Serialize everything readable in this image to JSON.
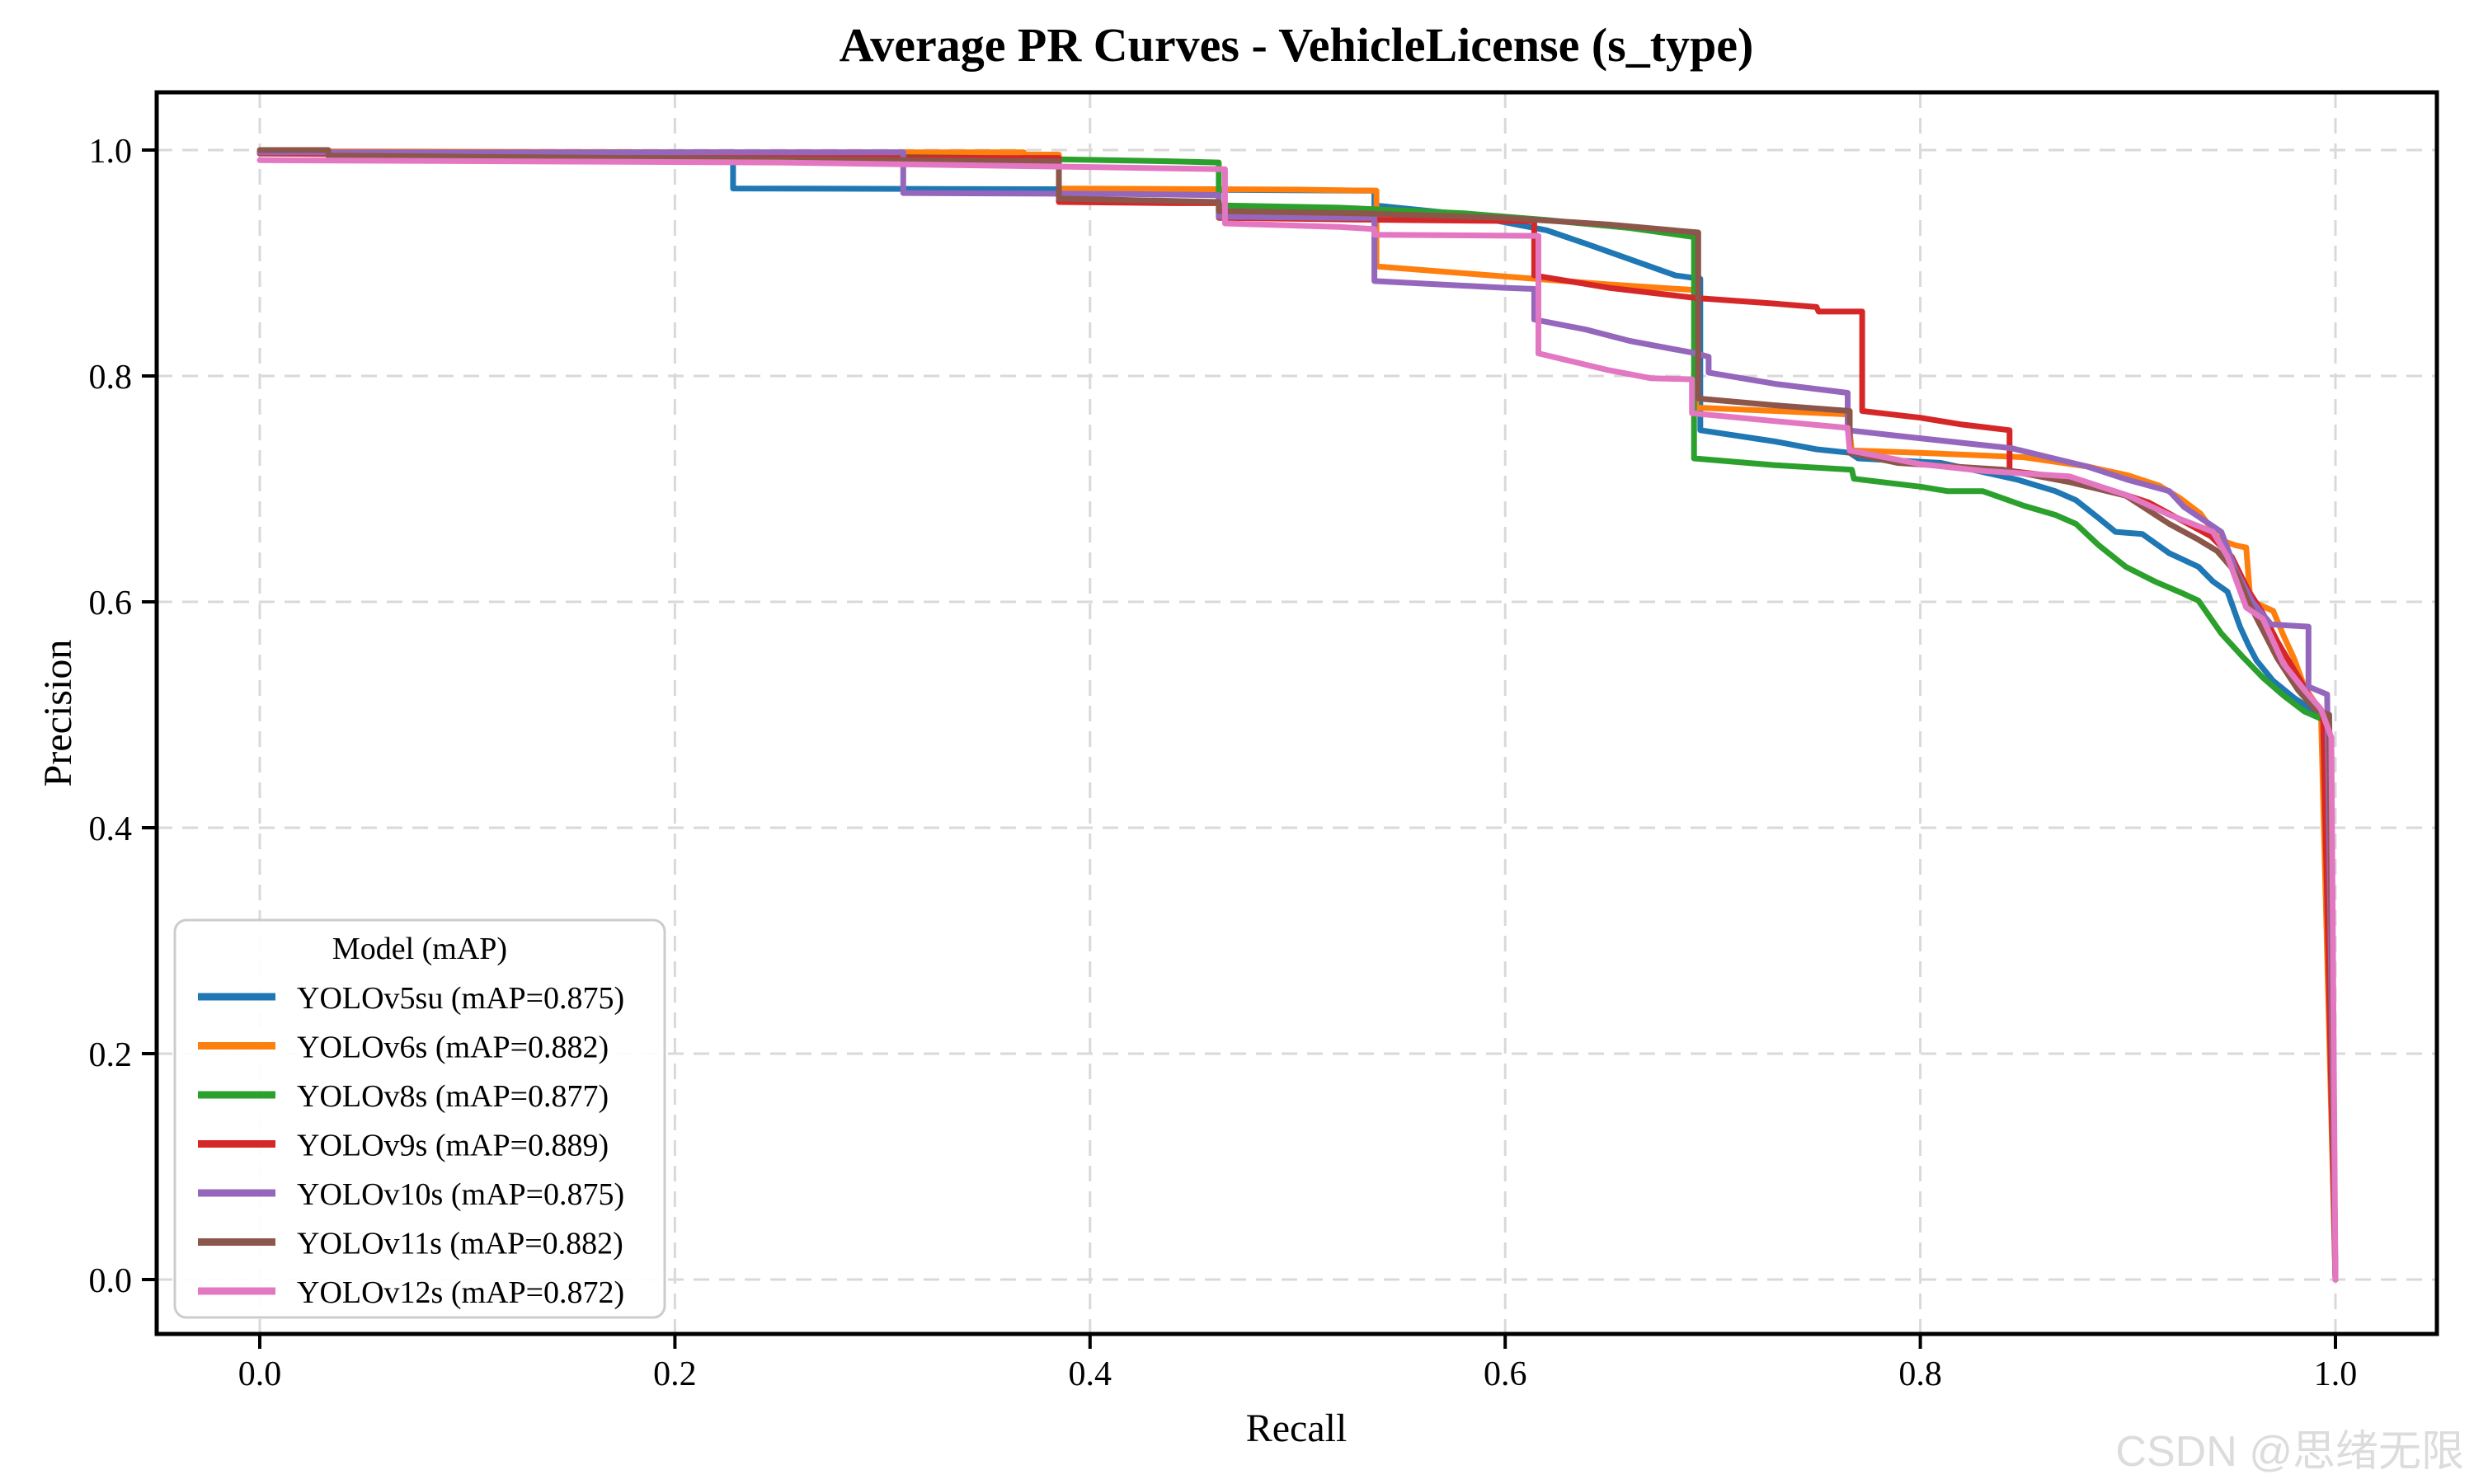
{
  "page": {
    "title": "Average PR Curves - VehicleLicense (s_type)",
    "watermark": "CSDN @思绪无限"
  },
  "chart_data": {
    "type": "line",
    "title": "Average PR Curves - VehicleLicense (s_type)",
    "xlabel": "Recall",
    "ylabel": "Precision",
    "xlim": [
      -0.05,
      1.05
    ],
    "ylim": [
      -0.05,
      1.05
    ],
    "x_ticks": [
      0.0,
      0.2,
      0.4,
      0.6,
      0.8,
      1.0
    ],
    "y_ticks": [
      0.0,
      0.2,
      0.4,
      0.6,
      0.8,
      1.0
    ],
    "grid": true,
    "grid_style": "dashed",
    "legend": {
      "title": "Model (mAP)",
      "position": "lower-left"
    },
    "series": [
      {
        "name": "YOLOv5su",
        "mAP": 0.875,
        "label": "YOLOv5su (mAP=0.875)",
        "color": "#1f77b4",
        "points": [
          [
            0,
            0.998
          ],
          [
            0.228,
            0.998
          ],
          [
            0.228,
            0.966
          ],
          [
            0.45,
            0.965
          ],
          [
            0.537,
            0.964
          ],
          [
            0.537,
            0.951
          ],
          [
            0.58,
            0.943
          ],
          [
            0.62,
            0.929
          ],
          [
            0.639,
            0.917
          ],
          [
            0.682,
            0.889
          ],
          [
            0.694,
            0.886
          ],
          [
            0.694,
            0.752
          ],
          [
            0.73,
            0.742
          ],
          [
            0.75,
            0.735
          ],
          [
            0.766,
            0.732
          ],
          [
            0.77,
            0.727
          ],
          [
            0.81,
            0.723
          ],
          [
            0.83,
            0.715
          ],
          [
            0.847,
            0.708
          ],
          [
            0.865,
            0.698
          ],
          [
            0.875,
            0.69
          ],
          [
            0.886,
            0.674
          ],
          [
            0.894,
            0.662
          ],
          [
            0.907,
            0.66
          ],
          [
            0.92,
            0.643
          ],
          [
            0.934,
            0.631
          ],
          [
            0.941,
            0.618
          ],
          [
            0.948,
            0.609
          ],
          [
            0.954,
            0.578
          ],
          [
            0.958,
            0.562
          ],
          [
            0.962,
            0.548
          ],
          [
            0.97,
            0.53
          ],
          [
            0.98,
            0.515
          ],
          [
            0.99,
            0.503
          ],
          [
            0.996,
            0.497
          ],
          [
            1,
            0
          ]
        ]
      },
      {
        "name": "YOLOv6s",
        "mAP": 0.882,
        "label": "YOLOv6s (mAP=0.882)",
        "color": "#ff7f0e",
        "points": [
          [
            0,
            0.999
          ],
          [
            0.2,
            0.998
          ],
          [
            0.368,
            0.998
          ],
          [
            0.368,
            0.996
          ],
          [
            0.385,
            0.996
          ],
          [
            0.385,
            0.966
          ],
          [
            0.5,
            0.965
          ],
          [
            0.538,
            0.964
          ],
          [
            0.538,
            0.897
          ],
          [
            0.6,
            0.888
          ],
          [
            0.65,
            0.881
          ],
          [
            0.692,
            0.876
          ],
          [
            0.692,
            0.772
          ],
          [
            0.73,
            0.769
          ],
          [
            0.765,
            0.766
          ],
          [
            0.767,
            0.734
          ],
          [
            0.8,
            0.732
          ],
          [
            0.85,
            0.728
          ],
          [
            0.88,
            0.72
          ],
          [
            0.9,
            0.712
          ],
          [
            0.915,
            0.703
          ],
          [
            0.925,
            0.692
          ],
          [
            0.935,
            0.678
          ],
          [
            0.944,
            0.655
          ],
          [
            0.952,
            0.65
          ],
          [
            0.957,
            0.648
          ],
          [
            0.959,
            0.601
          ],
          [
            0.97,
            0.592
          ],
          [
            0.975,
            0.57
          ],
          [
            0.98,
            0.55
          ],
          [
            0.985,
            0.525
          ],
          [
            0.993,
            0.503
          ],
          [
            1,
            0
          ]
        ]
      },
      {
        "name": "YOLOv8s",
        "mAP": 0.877,
        "label": "YOLOv8s (mAP=0.877)",
        "color": "#2ca02c",
        "points": [
          [
            0,
            0.997
          ],
          [
            0.2,
            0.996
          ],
          [
            0.35,
            0.993
          ],
          [
            0.44,
            0.99
          ],
          [
            0.462,
            0.989
          ],
          [
            0.462,
            0.951
          ],
          [
            0.52,
            0.949
          ],
          [
            0.58,
            0.944
          ],
          [
            0.62,
            0.938
          ],
          [
            0.66,
            0.931
          ],
          [
            0.691,
            0.923
          ],
          [
            0.691,
            0.727
          ],
          [
            0.73,
            0.721
          ],
          [
            0.767,
            0.717
          ],
          [
            0.768,
            0.709
          ],
          [
            0.8,
            0.702
          ],
          [
            0.813,
            0.698
          ],
          [
            0.83,
            0.698
          ],
          [
            0.85,
            0.685
          ],
          [
            0.865,
            0.677
          ],
          [
            0.875,
            0.669
          ],
          [
            0.886,
            0.65
          ],
          [
            0.899,
            0.631
          ],
          [
            0.913,
            0.618
          ],
          [
            0.927,
            0.607
          ],
          [
            0.934,
            0.601
          ],
          [
            0.945,
            0.572
          ],
          [
            0.955,
            0.552
          ],
          [
            0.965,
            0.533
          ],
          [
            0.975,
            0.517
          ],
          [
            0.985,
            0.503
          ],
          [
            0.995,
            0.495
          ],
          [
            1,
            0
          ]
        ]
      },
      {
        "name": "YOLOv9s",
        "mAP": 0.889,
        "label": "YOLOv9s (mAP=0.889)",
        "color": "#d62728",
        "points": [
          [
            0,
            0.997
          ],
          [
            0.14,
            0.995
          ],
          [
            0.35,
            0.993
          ],
          [
            0.385,
            0.993
          ],
          [
            0.385,
            0.954
          ],
          [
            0.44,
            0.953
          ],
          [
            0.462,
            0.953
          ],
          [
            0.462,
            0.94
          ],
          [
            0.55,
            0.938
          ],
          [
            0.614,
            0.937
          ],
          [
            0.614,
            0.889
          ],
          [
            0.65,
            0.878
          ],
          [
            0.692,
            0.869
          ],
          [
            0.73,
            0.864
          ],
          [
            0.75,
            0.861
          ],
          [
            0.751,
            0.857
          ],
          [
            0.772,
            0.857
          ],
          [
            0.772,
            0.769
          ],
          [
            0.8,
            0.763
          ],
          [
            0.82,
            0.757
          ],
          [
            0.843,
            0.752
          ],
          [
            0.843,
            0.716
          ],
          [
            0.87,
            0.71
          ],
          [
            0.89,
            0.7
          ],
          [
            0.91,
            0.688
          ],
          [
            0.925,
            0.673
          ],
          [
            0.94,
            0.658
          ],
          [
            0.95,
            0.64
          ],
          [
            0.958,
            0.61
          ],
          [
            0.965,
            0.59
          ],
          [
            0.972,
            0.565
          ],
          [
            0.98,
            0.54
          ],
          [
            0.988,
            0.515
          ],
          [
            0.994,
            0.5
          ],
          [
            1,
            0
          ]
        ]
      },
      {
        "name": "YOLOv10s",
        "mAP": 0.875,
        "label": "YOLOv10s (mAP=0.875)",
        "color": "#9467bd",
        "points": [
          [
            0,
            0.998
          ],
          [
            0.31,
            0.998
          ],
          [
            0.31,
            0.962
          ],
          [
            0.42,
            0.961
          ],
          [
            0.462,
            0.96
          ],
          [
            0.462,
            0.941
          ],
          [
            0.52,
            0.94
          ],
          [
            0.537,
            0.94
          ],
          [
            0.537,
            0.884
          ],
          [
            0.6,
            0.878
          ],
          [
            0.614,
            0.877
          ],
          [
            0.614,
            0.85
          ],
          [
            0.639,
            0.841
          ],
          [
            0.66,
            0.831
          ],
          [
            0.692,
            0.82
          ],
          [
            0.698,
            0.817
          ],
          [
            0.698,
            0.803
          ],
          [
            0.73,
            0.793
          ],
          [
            0.765,
            0.785
          ],
          [
            0.765,
            0.752
          ],
          [
            0.789,
            0.747
          ],
          [
            0.844,
            0.736
          ],
          [
            0.88,
            0.72
          ],
          [
            0.9,
            0.708
          ],
          [
            0.92,
            0.698
          ],
          [
            0.927,
            0.684
          ],
          [
            0.945,
            0.662
          ],
          [
            0.952,
            0.628
          ],
          [
            0.96,
            0.6
          ],
          [
            0.969,
            0.58
          ],
          [
            0.987,
            0.578
          ],
          [
            0.987,
            0.525
          ],
          [
            0.996,
            0.518
          ],
          [
            1,
            0
          ]
        ]
      },
      {
        "name": "YOLOv11s",
        "mAP": 0.882,
        "label": "YOLOv11s (mAP=0.882)",
        "color": "#8c564b",
        "points": [
          [
            0,
            1.0
          ],
          [
            0.033,
            1.0
          ],
          [
            0.033,
            0.995
          ],
          [
            0.25,
            0.992
          ],
          [
            0.385,
            0.99
          ],
          [
            0.385,
            0.957
          ],
          [
            0.44,
            0.955
          ],
          [
            0.462,
            0.954
          ],
          [
            0.462,
            0.946
          ],
          [
            0.53,
            0.944
          ],
          [
            0.6,
            0.94
          ],
          [
            0.65,
            0.934
          ],
          [
            0.693,
            0.927
          ],
          [
            0.693,
            0.78
          ],
          [
            0.73,
            0.774
          ],
          [
            0.766,
            0.769
          ],
          [
            0.766,
            0.732
          ],
          [
            0.789,
            0.723
          ],
          [
            0.84,
            0.717
          ],
          [
            0.872,
            0.706
          ],
          [
            0.899,
            0.694
          ],
          [
            0.92,
            0.669
          ],
          [
            0.934,
            0.655
          ],
          [
            0.943,
            0.645
          ],
          [
            0.952,
            0.626
          ],
          [
            0.958,
            0.6
          ],
          [
            0.965,
            0.575
          ],
          [
            0.972,
            0.55
          ],
          [
            0.982,
            0.522
          ],
          [
            0.99,
            0.505
          ],
          [
            0.997,
            0.5
          ],
          [
            1,
            0
          ]
        ]
      },
      {
        "name": "YOLOv12s",
        "mAP": 0.872,
        "label": "YOLOv12s (mAP=0.872)",
        "color": "#e377c2",
        "points": [
          [
            0,
            0.991
          ],
          [
            0.25,
            0.989
          ],
          [
            0.4,
            0.985
          ],
          [
            0.465,
            0.983
          ],
          [
            0.465,
            0.935
          ],
          [
            0.52,
            0.932
          ],
          [
            0.537,
            0.93
          ],
          [
            0.537,
            0.925
          ],
          [
            0.616,
            0.924
          ],
          [
            0.616,
            0.82
          ],
          [
            0.65,
            0.805
          ],
          [
            0.67,
            0.798
          ],
          [
            0.69,
            0.797
          ],
          [
            0.69,
            0.767
          ],
          [
            0.73,
            0.76
          ],
          [
            0.765,
            0.754
          ],
          [
            0.766,
            0.734
          ],
          [
            0.8,
            0.722
          ],
          [
            0.83,
            0.716
          ],
          [
            0.872,
            0.711
          ],
          [
            0.9,
            0.694
          ],
          [
            0.92,
            0.677
          ],
          [
            0.941,
            0.662
          ],
          [
            0.948,
            0.64
          ],
          [
            0.957,
            0.595
          ],
          [
            0.965,
            0.585
          ],
          [
            0.975,
            0.545
          ],
          [
            0.985,
            0.522
          ],
          [
            0.993,
            0.505
          ],
          [
            0.998,
            0.48
          ],
          [
            1,
            0
          ]
        ]
      }
    ]
  }
}
